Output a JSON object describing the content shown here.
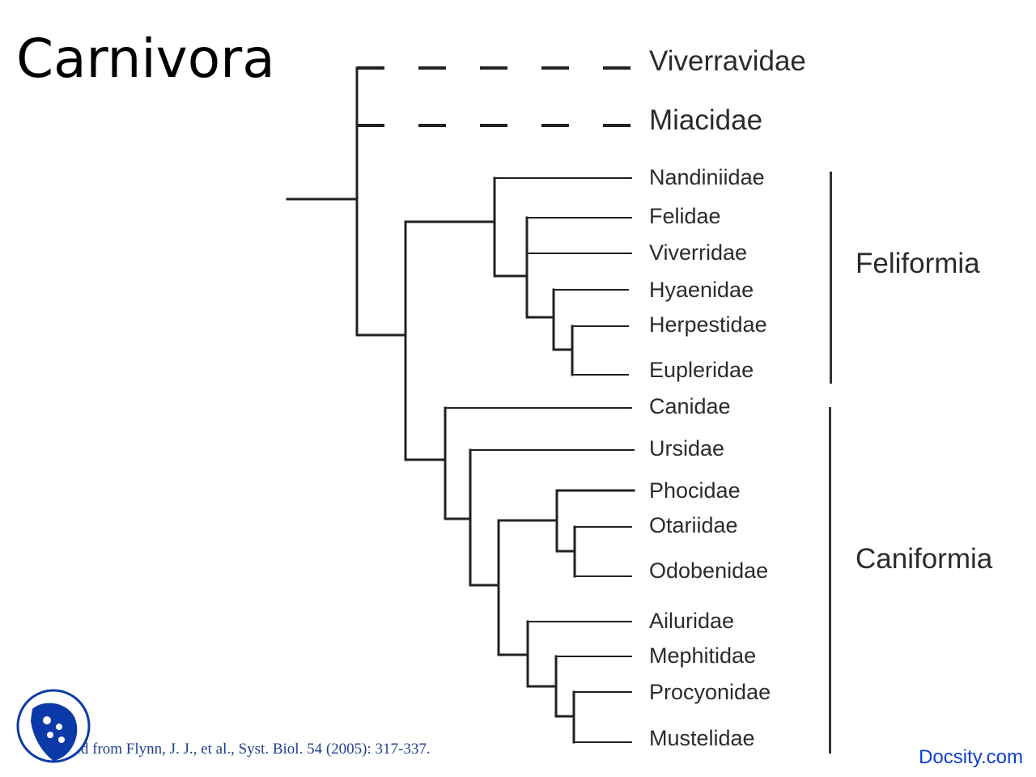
{
  "slide": {
    "title": "Carnivora",
    "citation": "Adapted from Flynn, J. J., et al., Syst. Biol. 54 (2005): 317-337.",
    "brand": "Docsity.com"
  },
  "tree": {
    "taxa": [
      {
        "id": "viverravidae",
        "label": "Viverravidae"
      },
      {
        "id": "miacidae",
        "label": "Miacidae"
      },
      {
        "id": "nandiniidae",
        "label": "Nandiniidae"
      },
      {
        "id": "felidae",
        "label": "Felidae"
      },
      {
        "id": "viverridae",
        "label": "Viverridae"
      },
      {
        "id": "hyaenidae",
        "label": "Hyaenidae"
      },
      {
        "id": "herpestidae",
        "label": "Herpestidae"
      },
      {
        "id": "eupleridae",
        "label": "Eupleridae"
      },
      {
        "id": "canidae",
        "label": "Canidae"
      },
      {
        "id": "ursidae",
        "label": "Ursidae"
      },
      {
        "id": "phocidae",
        "label": "Phocidae"
      },
      {
        "id": "otariidae",
        "label": "Otariidae"
      },
      {
        "id": "odobenidae",
        "label": "Odobenidae"
      },
      {
        "id": "ailuridae",
        "label": "Ailuridae"
      },
      {
        "id": "mephitidae",
        "label": "Mephitidae"
      },
      {
        "id": "procyonidae",
        "label": "Procyonidae"
      },
      {
        "id": "mustelidae",
        "label": "Mustelidae"
      }
    ],
    "groups": [
      {
        "id": "feliformia",
        "label": "Feliformia"
      },
      {
        "id": "caniformia",
        "label": "Caniformia"
      }
    ],
    "colors": {
      "branch": "#222222",
      "label": "#2b2b2b",
      "brand": "#0a3fd6",
      "logo": "#0b3aa8"
    }
  }
}
